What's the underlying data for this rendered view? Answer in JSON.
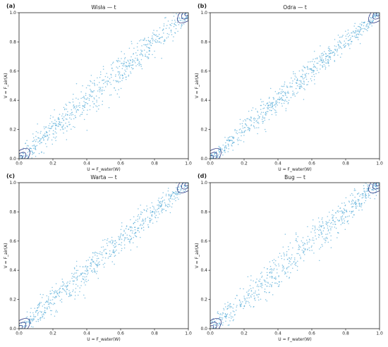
{
  "figure": {
    "xlabel": "U = F_water(W)",
    "ylabel": "V = F_air(A)",
    "ticks": [
      "0.0",
      "0.2",
      "0.4",
      "0.6",
      "0.8",
      "1.0"
    ]
  },
  "colors": {
    "points": "#5aaed8",
    "contour": "#1f2a7a",
    "axes": "#222222"
  },
  "chart_data": [
    {
      "type": "scatter",
      "panel": "(a)",
      "title": "Wisła — t",
      "xlim": [
        0,
        1
      ],
      "ylim": [
        0,
        1
      ],
      "n_points": 700,
      "spread": 0.045,
      "point_color": "#5aaed8",
      "contour_color": "#1f2a7a"
    },
    {
      "type": "scatter",
      "panel": "(b)",
      "title": "Odra — t",
      "xlim": [
        0,
        1
      ],
      "ylim": [
        0,
        1
      ],
      "n_points": 700,
      "spread": 0.035,
      "point_color": "#5aaed8",
      "contour_color": "#1f2a7a"
    },
    {
      "type": "scatter",
      "panel": "(c)",
      "title": "Warta — t",
      "xlim": [
        0,
        1
      ],
      "ylim": [
        0,
        1
      ],
      "n_points": 700,
      "spread": 0.04,
      "point_color": "#5aaed8",
      "contour_color": "#1f2a7a"
    },
    {
      "type": "scatter",
      "panel": "(d)",
      "title": "Bug — t",
      "xlim": [
        0,
        1
      ],
      "ylim": [
        0,
        1
      ],
      "n_points": 700,
      "spread": 0.045,
      "point_color": "#5aaed8",
      "contour_color": "#1f2a7a"
    }
  ]
}
